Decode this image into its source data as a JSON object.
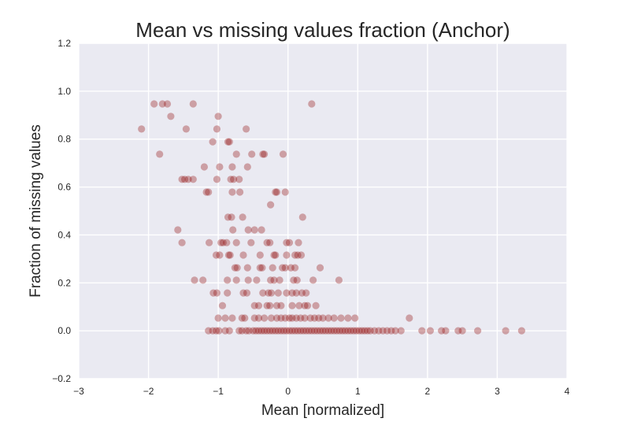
{
  "chart_data": {
    "type": "scatter",
    "title": "Mean vs missing values fraction (Anchor)",
    "xlabel": "Mean [normalized]",
    "ylabel": "Fraction of missing values",
    "xlim": [
      -3,
      4
    ],
    "ylim": [
      -0.2,
      1.2
    ],
    "xticks": [
      "−3",
      "−2",
      "−1",
      "0",
      "1",
      "2",
      "3",
      "4"
    ],
    "yticks": [
      "−0.2",
      "0.0",
      "0.2",
      "0.4",
      "0.6",
      "0.8",
      "1.0",
      "1.2"
    ],
    "xtick_values": [
      -3,
      -2,
      -1,
      0,
      1,
      2,
      3,
      4
    ],
    "ytick_values": [
      -0.2,
      0,
      0.2,
      0.4,
      0.6,
      0.8,
      1.0,
      1.2
    ],
    "grid": true,
    "background": "#eaeaf2",
    "point_color": "#8b0000",
    "points": [
      [
        -2.1,
        0.842
      ],
      [
        -1.92,
        0.947
      ],
      [
        -1.8,
        0.947
      ],
      [
        -1.73,
        0.947
      ],
      [
        -1.68,
        0.895
      ],
      [
        -1.36,
        0.947
      ],
      [
        -1.0,
        0.895
      ],
      [
        0.34,
        0.947
      ],
      [
        -1.46,
        0.842
      ],
      [
        -1.02,
        0.842
      ],
      [
        -0.6,
        0.842
      ],
      [
        -1.84,
        0.737
      ],
      [
        -1.08,
        0.789
      ],
      [
        -0.86,
        0.789
      ],
      [
        -0.84,
        0.789
      ],
      [
        -0.74,
        0.737
      ],
      [
        -0.52,
        0.737
      ],
      [
        -0.36,
        0.737
      ],
      [
        -0.34,
        0.737
      ],
      [
        -0.07,
        0.737
      ],
      [
        -1.2,
        0.684
      ],
      [
        -0.98,
        0.684
      ],
      [
        -0.8,
        0.684
      ],
      [
        -0.58,
        0.684
      ],
      [
        -0.78,
        0.632
      ],
      [
        -1.52,
        0.632
      ],
      [
        -1.48,
        0.632
      ],
      [
        -1.43,
        0.632
      ],
      [
        -1.36,
        0.632
      ],
      [
        -1.02,
        0.632
      ],
      [
        -0.82,
        0.632
      ],
      [
        -0.7,
        0.632
      ],
      [
        -1.17,
        0.579
      ],
      [
        -1.14,
        0.579
      ],
      [
        -0.8,
        0.579
      ],
      [
        -0.69,
        0.579
      ],
      [
        -0.18,
        0.579
      ],
      [
        -0.16,
        0.579
      ],
      [
        -0.04,
        0.579
      ],
      [
        -0.25,
        0.526
      ],
      [
        -0.86,
        0.474
      ],
      [
        -0.81,
        0.474
      ],
      [
        -0.65,
        0.474
      ],
      [
        0.21,
        0.474
      ],
      [
        -1.58,
        0.421
      ],
      [
        -0.57,
        0.421
      ],
      [
        -0.48,
        0.421
      ],
      [
        -0.38,
        0.421
      ],
      [
        -0.79,
        0.421
      ],
      [
        -1.52,
        0.368
      ],
      [
        -1.13,
        0.368
      ],
      [
        -0.96,
        0.368
      ],
      [
        -0.93,
        0.368
      ],
      [
        -0.88,
        0.368
      ],
      [
        -0.74,
        0.368
      ],
      [
        -0.53,
        0.368
      ],
      [
        -0.3,
        0.368
      ],
      [
        -0.26,
        0.368
      ],
      [
        -0.02,
        0.368
      ],
      [
        0.02,
        0.368
      ],
      [
        0.15,
        0.368
      ],
      [
        -1.03,
        0.316
      ],
      [
        -0.98,
        0.316
      ],
      [
        -0.85,
        0.316
      ],
      [
        -0.83,
        0.316
      ],
      [
        -0.64,
        0.316
      ],
      [
        -0.4,
        0.316
      ],
      [
        -0.2,
        0.316
      ],
      [
        -0.18,
        0.316
      ],
      [
        -0.02,
        0.316
      ],
      [
        0.1,
        0.316
      ],
      [
        0.14,
        0.316
      ],
      [
        0.19,
        0.316
      ],
      [
        -0.76,
        0.263
      ],
      [
        -0.73,
        0.263
      ],
      [
        -0.58,
        0.263
      ],
      [
        -0.4,
        0.263
      ],
      [
        -0.37,
        0.263
      ],
      [
        -0.22,
        0.263
      ],
      [
        -0.08,
        0.263
      ],
      [
        -0.04,
        0.263
      ],
      [
        0.04,
        0.263
      ],
      [
        0.1,
        0.263
      ],
      [
        0.46,
        0.263
      ],
      [
        -1.34,
        0.211
      ],
      [
        -1.22,
        0.211
      ],
      [
        -0.87,
        0.211
      ],
      [
        -0.74,
        0.211
      ],
      [
        -0.57,
        0.211
      ],
      [
        -0.45,
        0.211
      ],
      [
        -0.25,
        0.211
      ],
      [
        -0.2,
        0.211
      ],
      [
        -0.12,
        0.211
      ],
      [
        0.08,
        0.211
      ],
      [
        0.13,
        0.211
      ],
      [
        0.36,
        0.211
      ],
      [
        0.73,
        0.211
      ],
      [
        -1.07,
        0.158
      ],
      [
        -1.02,
        0.158
      ],
      [
        -0.87,
        0.158
      ],
      [
        -0.64,
        0.158
      ],
      [
        -0.59,
        0.158
      ],
      [
        -0.36,
        0.158
      ],
      [
        -0.28,
        0.158
      ],
      [
        -0.24,
        0.158
      ],
      [
        -0.14,
        0.158
      ],
      [
        -0.02,
        0.158
      ],
      [
        0.06,
        0.158
      ],
      [
        0.12,
        0.158
      ],
      [
        0.2,
        0.158
      ],
      [
        0.26,
        0.158
      ],
      [
        -0.94,
        0.105
      ],
      [
        -0.48,
        0.105
      ],
      [
        -0.42,
        0.105
      ],
      [
        -0.3,
        0.105
      ],
      [
        -0.26,
        0.105
      ],
      [
        -0.16,
        0.105
      ],
      [
        -0.1,
        0.105
      ],
      [
        0.06,
        0.105
      ],
      [
        0.16,
        0.105
      ],
      [
        0.24,
        0.105
      ],
      [
        0.28,
        0.105
      ],
      [
        0.4,
        0.105
      ],
      [
        -1.0,
        0.053
      ],
      [
        -0.9,
        0.053
      ],
      [
        -0.8,
        0.053
      ],
      [
        -0.66,
        0.053
      ],
      [
        -0.62,
        0.053
      ],
      [
        -0.48,
        0.053
      ],
      [
        -0.42,
        0.053
      ],
      [
        -0.34,
        0.053
      ],
      [
        -0.24,
        0.053
      ],
      [
        -0.16,
        0.053
      ],
      [
        -0.1,
        0.053
      ],
      [
        -0.04,
        0.053
      ],
      [
        0.02,
        0.053
      ],
      [
        0.06,
        0.053
      ],
      [
        0.12,
        0.053
      ],
      [
        0.18,
        0.053
      ],
      [
        0.24,
        0.053
      ],
      [
        0.32,
        0.053
      ],
      [
        0.38,
        0.053
      ],
      [
        0.44,
        0.053
      ],
      [
        0.5,
        0.053
      ],
      [
        0.58,
        0.053
      ],
      [
        0.66,
        0.053
      ],
      [
        0.76,
        0.053
      ],
      [
        0.86,
        0.053
      ],
      [
        0.96,
        0.053
      ],
      [
        1.74,
        0.053
      ],
      [
        -1.14,
        0
      ],
      [
        -1.08,
        0
      ],
      [
        -1.03,
        0
      ],
      [
        -0.99,
        0
      ],
      [
        -0.9,
        0
      ],
      [
        -0.84,
        0
      ],
      [
        -0.7,
        0
      ],
      [
        -0.66,
        0
      ],
      [
        -0.6,
        0
      ],
      [
        -0.56,
        0
      ],
      [
        -0.5,
        0
      ],
      [
        -0.46,
        0
      ],
      [
        -0.42,
        0
      ],
      [
        -0.38,
        0
      ],
      [
        -0.34,
        0
      ],
      [
        -0.3,
        0
      ],
      [
        -0.26,
        0
      ],
      [
        -0.22,
        0
      ],
      [
        -0.18,
        0
      ],
      [
        -0.14,
        0
      ],
      [
        -0.1,
        0
      ],
      [
        -0.06,
        0
      ],
      [
        -0.02,
        0
      ],
      [
        0.02,
        0
      ],
      [
        0.06,
        0
      ],
      [
        0.1,
        0
      ],
      [
        0.14,
        0
      ],
      [
        0.18,
        0
      ],
      [
        0.22,
        0
      ],
      [
        0.26,
        0
      ],
      [
        0.3,
        0
      ],
      [
        0.34,
        0
      ],
      [
        0.38,
        0
      ],
      [
        0.42,
        0
      ],
      [
        0.46,
        0
      ],
      [
        0.5,
        0
      ],
      [
        0.54,
        0
      ],
      [
        0.58,
        0
      ],
      [
        0.62,
        0
      ],
      [
        0.66,
        0
      ],
      [
        0.7,
        0
      ],
      [
        0.74,
        0
      ],
      [
        0.78,
        0
      ],
      [
        0.82,
        0
      ],
      [
        0.86,
        0
      ],
      [
        0.9,
        0
      ],
      [
        0.94,
        0
      ],
      [
        0.98,
        0
      ],
      [
        1.02,
        0
      ],
      [
        1.06,
        0
      ],
      [
        1.1,
        0
      ],
      [
        1.14,
        0
      ],
      [
        1.18,
        0
      ],
      [
        1.24,
        0
      ],
      [
        1.3,
        0
      ],
      [
        1.36,
        0
      ],
      [
        1.42,
        0
      ],
      [
        1.48,
        0
      ],
      [
        1.54,
        0
      ],
      [
        1.62,
        0
      ],
      [
        1.92,
        0
      ],
      [
        2.04,
        0
      ],
      [
        2.2,
        0
      ],
      [
        2.26,
        0
      ],
      [
        2.44,
        0
      ],
      [
        2.5,
        0
      ],
      [
        2.72,
        0
      ],
      [
        3.12,
        0
      ],
      [
        3.35,
        0
      ]
    ]
  }
}
